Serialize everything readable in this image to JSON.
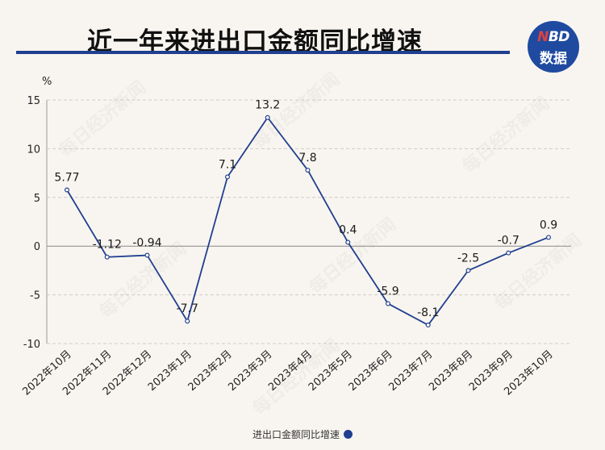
{
  "header": {
    "title": "近一年来进出口金额同比增速",
    "logo_top": "NBD",
    "logo_bottom": "数据",
    "colors": {
      "accent": "#1f3f8f",
      "logo_bg": "#1f4aa0",
      "logo_n": "#e04040"
    }
  },
  "watermark": "每日经济新闻",
  "chart_data": {
    "type": "line",
    "title": "近一年来进出口金额同比增速",
    "ylabel": "%",
    "xlabel": "",
    "categories": [
      "2022年10月",
      "2022年11月",
      "2022年12月",
      "2023年1月",
      "2023年2月",
      "2023年3月",
      "2023年4月",
      "2023年5月",
      "2023年6月",
      "2023年7月",
      "2023年8月",
      "2023年9月",
      "2023年10月"
    ],
    "series": [
      {
        "name": "进出口金额同比增速",
        "values": [
          5.77,
          -1.12,
          -0.94,
          -7.7,
          7.1,
          13.2,
          7.8,
          0.4,
          -5.9,
          -8.1,
          -2.5,
          -0.7,
          0.9
        ],
        "labels": [
          "5.77",
          "-1.12",
          "-0.94",
          "-7.7",
          "7.1",
          "13.2",
          "7.8",
          "0.4",
          "-5.9",
          "-8.1",
          "-2.5",
          "-0.7",
          "0.9"
        ],
        "color": "#1f3f8f"
      }
    ],
    "ylim": [
      -10,
      15
    ],
    "yticks": [
      15,
      10,
      5,
      0,
      -5,
      -10
    ],
    "ytick_labels": [
      "15",
      "10",
      "5",
      "0",
      "-5",
      "-10"
    ],
    "grid": true,
    "legend": "bottom-center"
  }
}
